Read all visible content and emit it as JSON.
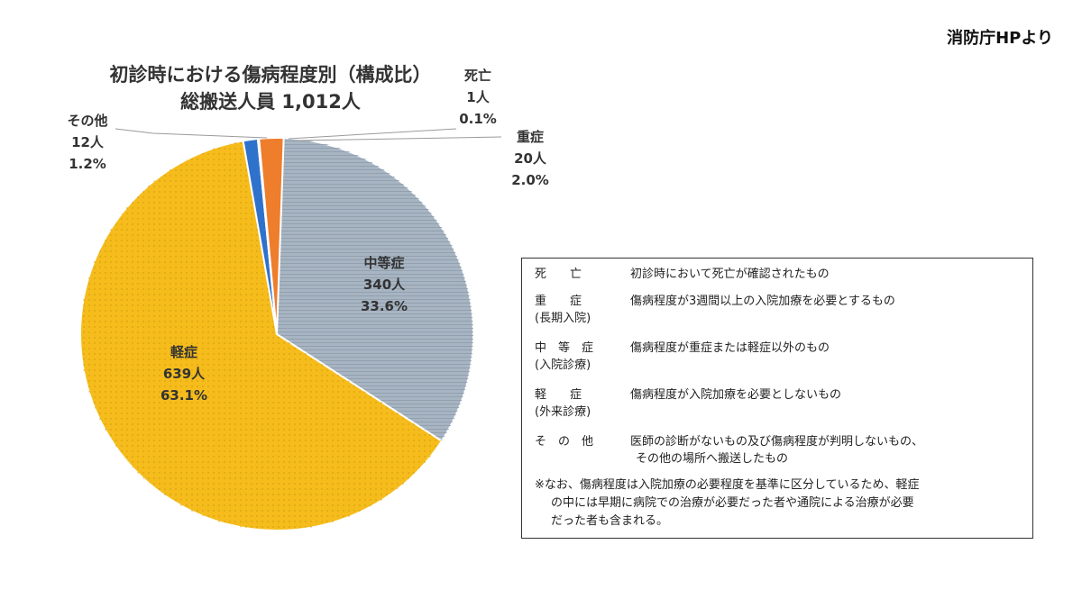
{
  "source": "消防庁HPより",
  "chart_data": {
    "type": "pie",
    "title_line1": "初診時における傷病程度別（構成比）",
    "title_line2": "総搬送人員 1,012人",
    "slices": [
      {
        "name": "中等症",
        "count": "340人",
        "percent": "33.6%",
        "value": 33.6,
        "color": "#a7b4c2"
      },
      {
        "name": "軽症",
        "count": "639人",
        "percent": "63.1%",
        "value": 63.1,
        "color": "#f5bc1c"
      },
      {
        "name": "その他",
        "count": "12人",
        "percent": "1.2%",
        "value": 1.2,
        "color": "#2f72cc"
      },
      {
        "name": "死亡",
        "count": "1人",
        "percent": "0.1%",
        "value": 0.1,
        "color": "#7a7a7a"
      },
      {
        "name": "重症",
        "count": "20人",
        "percent": "2.0%",
        "value": 2.0,
        "color": "#ee7d2c"
      }
    ]
  },
  "legend": {
    "rows": [
      {
        "term": "死　　亡",
        "sub": "",
        "def": "初診時において死亡が確認されたもの",
        "def2": ""
      },
      {
        "term": "重　　症",
        "sub": "(長期入院)",
        "def": "傷病程度が3週間以上の入院加療を必要とするもの",
        "def2": ""
      },
      {
        "term": "中　等　症",
        "sub": "(入院診療)",
        "def": "傷病程度が重症または軽症以外のもの",
        "def2": ""
      },
      {
        "term": "軽　　症",
        "sub": "(外来診療)",
        "def": "傷病程度が入院加療を必要としないもの",
        "def2": ""
      },
      {
        "term": "そ　の　他",
        "sub": "",
        "def": "医師の診断がないもの及び傷病程度が判明しないもの、",
        "def2": "その他の場所へ搬送したもの"
      }
    ],
    "note_line1": "※なお、傷病程度は入院加療の必要程度を基準に区分しているため、軽症",
    "note_line2": "の中には早期に病院での治療が必要だった者や通院による治療が必要",
    "note_line3": "だった者も含まれる。"
  }
}
